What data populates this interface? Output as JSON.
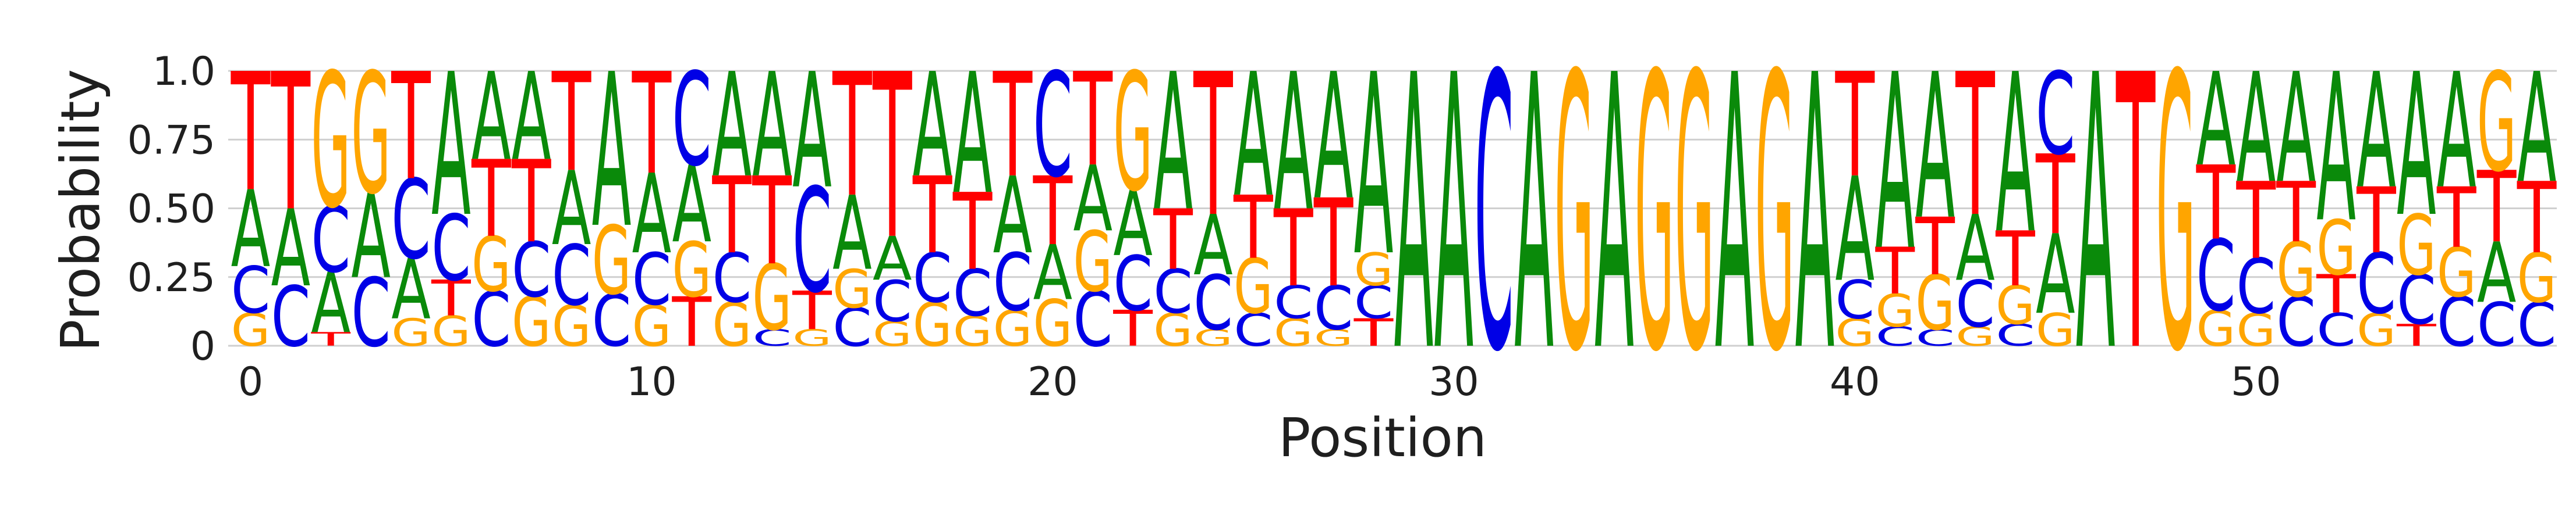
{
  "chart_data": {
    "type": "sequence-logo",
    "title": "",
    "xlabel": "Position",
    "ylabel": "Probability",
    "ylim": [
      0,
      1
    ],
    "yticks": [
      0,
      0.25,
      0.5,
      0.75,
      1.0
    ],
    "ytick_labels": [
      "0",
      "0.25",
      "0.50",
      "0.75",
      "1.0"
    ],
    "xticks": [
      0,
      10,
      20,
      30,
      40,
      50
    ],
    "xtick_labels": [
      "0",
      "10",
      "20",
      "30",
      "40",
      "50"
    ],
    "grid": "horizontal",
    "colors": {
      "A": "#0a8a0a",
      "C": "#0000e6",
      "G": "#ffa500",
      "T": "#ff0000"
    },
    "positions": [
      {
        "pos": 0,
        "A": 0.28,
        "C": 0.17,
        "G": 0.12,
        "T": 0.43
      },
      {
        "pos": 1,
        "A": 0.28,
        "C": 0.22,
        "G": 0.0,
        "T": 0.5
      },
      {
        "pos": 2,
        "A": 0.22,
        "C": 0.24,
        "G": 0.49,
        "T": 0.05
      },
      {
        "pos": 3,
        "A": 0.31,
        "C": 0.25,
        "G": 0.44,
        "T": 0.0
      },
      {
        "pos": 4,
        "A": 0.22,
        "C": 0.29,
        "G": 0.1,
        "T": 0.39
      },
      {
        "pos": 5,
        "A": 0.52,
        "C": 0.24,
        "G": 0.11,
        "T": 0.13
      },
      {
        "pos": 6,
        "A": 0.32,
        "C": 0.2,
        "G": 0.2,
        "T": 0.28
      },
      {
        "pos": 7,
        "A": 0.32,
        "C": 0.2,
        "G": 0.18,
        "T": 0.3
      },
      {
        "pos": 8,
        "A": 0.27,
        "C": 0.22,
        "G": 0.15,
        "T": 0.36
      },
      {
        "pos": 9,
        "A": 0.56,
        "C": 0.19,
        "G": 0.25,
        "T": 0.0
      },
      {
        "pos": 10,
        "A": 0.29,
        "C": 0.19,
        "G": 0.15,
        "T": 0.37
      },
      {
        "pos": 11,
        "A": 0.28,
        "C": 0.34,
        "G": 0.2,
        "T": 0.18
      },
      {
        "pos": 12,
        "A": 0.38,
        "C": 0.18,
        "G": 0.16,
        "T": 0.28
      },
      {
        "pos": 13,
        "A": 0.38,
        "C": 0.06,
        "G": 0.24,
        "T": 0.32
      },
      {
        "pos": 14,
        "A": 0.42,
        "C": 0.38,
        "G": 0.06,
        "T": 0.14
      },
      {
        "pos": 15,
        "A": 0.27,
        "C": 0.14,
        "G": 0.14,
        "T": 0.45
      },
      {
        "pos": 16,
        "A": 0.16,
        "C": 0.15,
        "G": 0.09,
        "T": 0.6
      },
      {
        "pos": 17,
        "A": 0.38,
        "C": 0.18,
        "G": 0.16,
        "T": 0.28
      },
      {
        "pos": 18,
        "A": 0.44,
        "C": 0.17,
        "G": 0.11,
        "T": 0.28
      },
      {
        "pos": 19,
        "A": 0.28,
        "C": 0.21,
        "G": 0.13,
        "T": 0.38
      },
      {
        "pos": 20,
        "A": 0.2,
        "C": 0.38,
        "G": 0.17,
        "T": 0.25
      },
      {
        "pos": 21,
        "A": 0.24,
        "C": 0.2,
        "G": 0.22,
        "T": 0.34
      },
      {
        "pos": 22,
        "A": 0.24,
        "C": 0.2,
        "G": 0.43,
        "T": 0.13
      },
      {
        "pos": 23,
        "A": 0.5,
        "C": 0.16,
        "G": 0.12,
        "T": 0.22
      },
      {
        "pos": 24,
        "A": 0.22,
        "C": 0.2,
        "G": 0.06,
        "T": 0.52
      },
      {
        "pos": 25,
        "A": 0.45,
        "C": 0.12,
        "G": 0.2,
        "T": 0.23
      },
      {
        "pos": 26,
        "A": 0.5,
        "C": 0.12,
        "G": 0.1,
        "T": 0.28
      },
      {
        "pos": 27,
        "A": 0.46,
        "C": 0.16,
        "G": 0.06,
        "T": 0.32
      },
      {
        "pos": 28,
        "A": 0.66,
        "C": 0.12,
        "G": 0.12,
        "T": 0.1
      },
      {
        "pos": 29,
        "A": 1.0,
        "C": 0.0,
        "G": 0.0,
        "T": 0.0
      },
      {
        "pos": 30,
        "A": 1.0,
        "C": 0.0,
        "G": 0.0,
        "T": 0.0
      },
      {
        "pos": 31,
        "A": 0.0,
        "C": 1.0,
        "G": 0.0,
        "T": 0.0
      },
      {
        "pos": 32,
        "A": 1.0,
        "C": 0.0,
        "G": 0.0,
        "T": 0.0
      },
      {
        "pos": 33,
        "A": 0.0,
        "C": 0.0,
        "G": 1.0,
        "T": 0.0
      },
      {
        "pos": 34,
        "A": 1.0,
        "C": 0.0,
        "G": 0.0,
        "T": 0.0
      },
      {
        "pos": 35,
        "A": 0.0,
        "C": 0.0,
        "G": 1.0,
        "T": 0.0
      },
      {
        "pos": 36,
        "A": 0.0,
        "C": 0.0,
        "G": 1.0,
        "T": 0.0
      },
      {
        "pos": 37,
        "A": 1.0,
        "C": 0.0,
        "G": 0.0,
        "T": 0.0
      },
      {
        "pos": 38,
        "A": 0.0,
        "C": 0.0,
        "G": 1.0,
        "T": 0.0
      },
      {
        "pos": 39,
        "A": 1.0,
        "C": 0.0,
        "G": 0.0,
        "T": 0.0
      },
      {
        "pos": 40,
        "A": 0.38,
        "C": 0.14,
        "G": 0.1,
        "T": 0.38
      },
      {
        "pos": 41,
        "A": 0.64,
        "C": 0.07,
        "G": 0.12,
        "T": 0.17
      },
      {
        "pos": 42,
        "A": 0.53,
        "C": 0.06,
        "G": 0.2,
        "T": 0.21
      },
      {
        "pos": 43,
        "A": 0.24,
        "C": 0.17,
        "G": 0.07,
        "T": 0.52
      },
      {
        "pos": 44,
        "A": 0.58,
        "C": 0.08,
        "G": 0.14,
        "T": 0.2
      },
      {
        "pos": 45,
        "A": 0.29,
        "C": 0.3,
        "G": 0.12,
        "T": 0.29
      },
      {
        "pos": 46,
        "A": 1.0,
        "C": 0.0,
        "G": 0.0,
        "T": 0.0
      },
      {
        "pos": 47,
        "A": 0.0,
        "C": 0.0,
        "G": 0.0,
        "T": 1.0
      },
      {
        "pos": 48,
        "A": 0.0,
        "C": 0.0,
        "G": 1.0,
        "T": 0.0
      },
      {
        "pos": 49,
        "A": 0.34,
        "C": 0.26,
        "G": 0.13,
        "T": 0.27
      },
      {
        "pos": 50,
        "A": 0.4,
        "C": 0.2,
        "G": 0.12,
        "T": 0.28
      },
      {
        "pos": 51,
        "A": 0.4,
        "C": 0.18,
        "G": 0.2,
        "T": 0.22
      },
      {
        "pos": 52,
        "A": 0.54,
        "C": 0.12,
        "G": 0.2,
        "T": 0.14
      },
      {
        "pos": 53,
        "A": 0.42,
        "C": 0.22,
        "G": 0.12,
        "T": 0.24
      },
      {
        "pos": 54,
        "A": 0.52,
        "C": 0.18,
        "G": 0.22,
        "T": 0.08
      },
      {
        "pos": 55,
        "A": 0.42,
        "C": 0.18,
        "G": 0.18,
        "T": 0.22
      },
      {
        "pos": 56,
        "A": 0.22,
        "C": 0.16,
        "G": 0.36,
        "T": 0.26
      },
      {
        "pos": 57,
        "A": 0.4,
        "C": 0.16,
        "G": 0.18,
        "T": 0.26
      }
    ]
  }
}
